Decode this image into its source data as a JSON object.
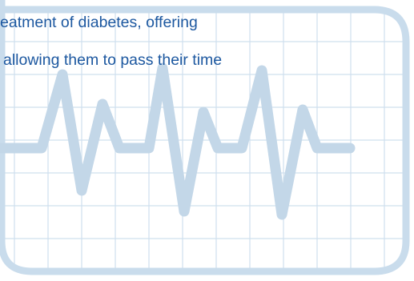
{
  "caption": {
    "line_1": "eatment of diabetes, offering",
    "line_2": "allowing them to pass their time"
  },
  "colors": {
    "text": "#1d58a0",
    "chart_frame": "#c9dcec",
    "grid_lines": "#cfe0ee",
    "pulse_line": "#c3d7e8",
    "background": "#ffffff"
  },
  "icons": [
    "heartbeat-ecg-graphic"
  ]
}
